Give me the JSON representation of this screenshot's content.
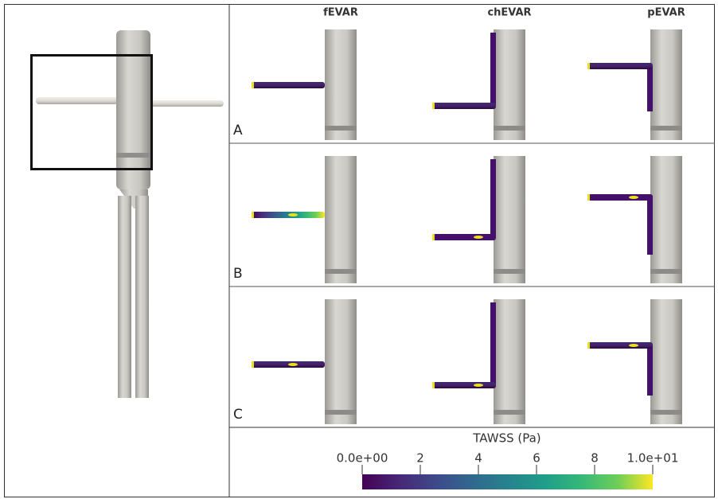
{
  "figure": {
    "columns": [
      "fEVAR",
      "chEVAR",
      "pEVAR"
    ],
    "rows": [
      "A",
      "B",
      "C"
    ],
    "colorbar": {
      "title": "TAWSS (Pa)",
      "lim": [
        0,
        10
      ],
      "ticks": [
        {
          "value": 0,
          "label": "0.0e+00"
        },
        2,
        4,
        6,
        8,
        {
          "value": 10,
          "label": "1.0e+01"
        }
      ],
      "colormap": "viridis"
    }
  }
}
